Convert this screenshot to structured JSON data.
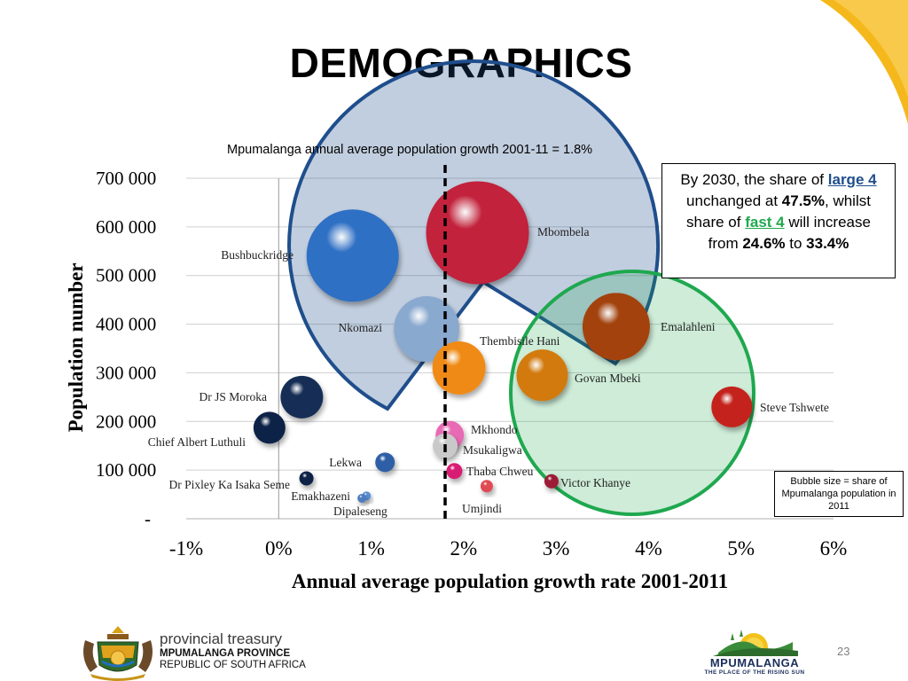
{
  "title": "DEMOGRAPHICS",
  "growth_note": "Mpumalanga annual average population growth 2001-11 = 1.8%",
  "callout": {
    "t1": "By 2030, the share of ",
    "t2": "large 4",
    "t3": " unchanged at ",
    "t4": "47.5%",
    "t5": ", whilst share of ",
    "t6": "fast 4",
    "t7": " will increase from ",
    "t8": "24.6%",
    "t9": " to ",
    "t10": "33.4%"
  },
  "bubble_note": "Bubble size = share of Mpumalanga population in 2011",
  "page_number": "23",
  "footer": {
    "treasury_line1": "provincial treasury",
    "treasury_line2": "MPUMALANGA PROVINCE",
    "treasury_line3": "REPUBLIC OF SOUTH AFRICA",
    "brand_line1": "MPUMALANGA",
    "brand_line2": "THE PLACE OF THE RISING SUN"
  },
  "colors": {
    "large4": "#1f4e8c",
    "fast4": "#1fa84f",
    "threshold_line": "#000000",
    "corner": "#f5b81c"
  },
  "chart_data": {
    "type": "scatter",
    "xlabel": "Annual average population growth rate 2001-2011",
    "ylabel": "Population number",
    "xlim": [
      -1,
      6
    ],
    "ylim": [
      0,
      700000
    ],
    "x_ticks": [
      "-1%",
      "0%",
      "1%",
      "2%",
      "3%",
      "4%",
      "5%",
      "6%"
    ],
    "y_ticks": [
      "-",
      "100 000",
      "200 000",
      "300 000",
      "400 000",
      "500 000",
      "600 000",
      "700 000"
    ],
    "grid": true,
    "threshold_x": 1.8,
    "points": [
      {
        "name": "Mbombela",
        "x": 2.15,
        "y": 588000,
        "color": "#c2223a"
      },
      {
        "name": "Bushbuckridge",
        "x": 0.8,
        "y": 541000,
        "color": "#2e6fc4"
      },
      {
        "name": "Nkomazi",
        "x": 1.6,
        "y": 390000,
        "color": "#8aa9cf"
      },
      {
        "name": "Emalahleni",
        "x": 3.65,
        "y": 395000,
        "color": "#a3430f"
      },
      {
        "name": "Thembisile Hani",
        "x": 1.95,
        "y": 310000,
        "color": "#f08a12"
      },
      {
        "name": "Govan Mbeki",
        "x": 2.85,
        "y": 295000,
        "color": "#d27a10"
      },
      {
        "name": "Steve Tshwete",
        "x": 4.9,
        "y": 230000,
        "color": "#c4241c"
      },
      {
        "name": "Dr JS Moroka",
        "x": 0.25,
        "y": 250000,
        "color": "#162d55"
      },
      {
        "name": "Chief Albert Luthuli",
        "x": -0.1,
        "y": 187000,
        "color": "#0f2347"
      },
      {
        "name": "Mkhondo",
        "x": 1.85,
        "y": 172000,
        "color": "#e86bb4"
      },
      {
        "name": "Msukaligwa",
        "x": 1.8,
        "y": 150000,
        "color": "#c9c9c9"
      },
      {
        "name": "Lekwa",
        "x": 1.15,
        "y": 116000,
        "color": "#2d5ea6"
      },
      {
        "name": "Thaba Chweu",
        "x": 1.9,
        "y": 98000,
        "color": "#d81b73"
      },
      {
        "name": "Dr Pixley Ka Isaka Seme",
        "x": 0.3,
        "y": 83000,
        "color": "#0f2347"
      },
      {
        "name": "Victor Khanye",
        "x": 2.95,
        "y": 77000,
        "color": "#9c1a35"
      },
      {
        "name": "Umjindi",
        "x": 2.25,
        "y": 67000,
        "color": "#e04b52"
      },
      {
        "name": "Emakhazeni",
        "x": 0.95,
        "y": 47000,
        "color": "#5b8fd1"
      },
      {
        "name": "Dipaleseng",
        "x": 0.9,
        "y": 42000,
        "color": "#4b7cc0"
      }
    ],
    "groups": [
      {
        "name": "large 4",
        "color": "#1f4e8c"
      },
      {
        "name": "fast 4",
        "color": "#1fa84f"
      }
    ]
  }
}
